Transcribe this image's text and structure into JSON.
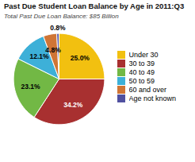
{
  "chart_data": {
    "type": "pie",
    "title": "Past Due Student Loan Balance by Age in 2011:Q3",
    "subtitle": "Total Past Due Loan Balance:  $85 Billion",
    "categories": [
      "Under 30",
      "30 to 39",
      "40 to 49",
      "50 to 59",
      "60 and over",
      "Age not known"
    ],
    "values": [
      25.0,
      34.2,
      23.1,
      12.1,
      4.8,
      0.8
    ],
    "value_labels": [
      "25.0%",
      "34.2%",
      "23.1%",
      "12.1%",
      "4.8%",
      "0.8%"
    ],
    "colors": [
      "#F2C010",
      "#A83030",
      "#72B845",
      "#3DB0D8",
      "#D07535",
      "#5050A0"
    ],
    "data_labels": true,
    "legend": "right"
  }
}
